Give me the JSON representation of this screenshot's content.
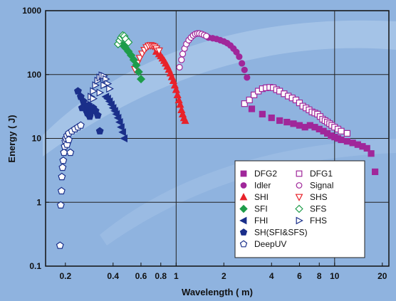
{
  "chart_data": {
    "type": "scatter",
    "xlabel": "Wavelength ( m)",
    "ylabel": "Energy ( J)",
    "xscale": "log",
    "yscale": "log",
    "xlim": [
      0.15,
      22
    ],
    "ylim": [
      0.1,
      1000
    ],
    "grid": true,
    "legend_position": "bottom-right",
    "x_ticks": [
      {
        "value": 0.2,
        "label": "0.2"
      },
      {
        "value": 0.4,
        "label": "0.4"
      },
      {
        "value": 0.6,
        "label": "0.6"
      },
      {
        "value": 0.8,
        "label": "0.8"
      },
      {
        "value": 1,
        "label": "1"
      },
      {
        "value": 2,
        "label": "2"
      },
      {
        "value": 4,
        "label": "4"
      },
      {
        "value": 6,
        "label": "6"
      },
      {
        "value": 8,
        "label": "8"
      },
      {
        "value": 10,
        "label": "10"
      },
      {
        "value": 20,
        "label": "20"
      }
    ],
    "y_ticks": [
      {
        "value": 0.1,
        "label": "0.1"
      },
      {
        "value": 1,
        "label": "1"
      },
      {
        "value": 10,
        "label": "10"
      },
      {
        "value": 100,
        "label": "100"
      },
      {
        "value": 1000,
        "label": "1000"
      }
    ],
    "series": [
      {
        "name": "DFG2",
        "marker": "square",
        "filled": true,
        "color": "#a0279a",
        "points": [
          [
            3.0,
            29
          ],
          [
            3.5,
            24
          ],
          [
            4.0,
            21
          ],
          [
            4.5,
            19
          ],
          [
            5.0,
            18
          ],
          [
            5.5,
            17
          ],
          [
            6.0,
            16
          ],
          [
            6.5,
            15
          ],
          [
            7.0,
            16
          ],
          [
            7.5,
            15
          ],
          [
            8.0,
            14
          ],
          [
            8.5,
            13
          ],
          [
            9.0,
            12
          ],
          [
            9.5,
            11
          ],
          [
            10,
            10.5
          ],
          [
            10.5,
            10
          ],
          [
            11,
            9.5
          ],
          [
            12,
            9
          ],
          [
            13,
            8.5
          ],
          [
            14,
            8
          ],
          [
            15,
            7.5
          ],
          [
            16,
            7
          ],
          [
            17,
            5.8
          ],
          [
            18,
            3.0
          ]
        ]
      },
      {
        "name": "DFG1",
        "marker": "square",
        "filled": false,
        "color": "#a0279a",
        "points": [
          [
            2.7,
            35
          ],
          [
            2.9,
            40
          ],
          [
            3.1,
            48
          ],
          [
            3.3,
            55
          ],
          [
            3.5,
            60
          ],
          [
            3.7,
            62
          ],
          [
            3.9,
            63
          ],
          [
            4.1,
            62
          ],
          [
            4.3,
            58
          ],
          [
            4.5,
            55
          ],
          [
            4.8,
            50
          ],
          [
            5.1,
            46
          ],
          [
            5.4,
            43
          ],
          [
            5.7,
            40
          ],
          [
            6.0,
            36
          ],
          [
            6.3,
            32
          ],
          [
            6.6,
            30
          ],
          [
            6.9,
            28
          ],
          [
            7.2,
            26
          ],
          [
            7.5,
            25
          ],
          [
            7.8,
            24
          ],
          [
            8.1,
            22
          ],
          [
            8.4,
            20
          ],
          [
            8.7,
            19
          ],
          [
            9.0,
            18
          ],
          [
            9.3,
            17
          ],
          [
            9.6,
            16
          ],
          [
            10,
            15
          ],
          [
            10.5,
            14
          ],
          [
            11,
            13
          ],
          [
            12,
            12
          ]
        ]
      },
      {
        "name": "Idler",
        "marker": "circle",
        "filled": true,
        "color": "#a0279a",
        "points": [
          [
            1.6,
            380
          ],
          [
            1.7,
            370
          ],
          [
            1.8,
            360
          ],
          [
            1.9,
            345
          ],
          [
            2.0,
            330
          ],
          [
            2.1,
            310
          ],
          [
            2.2,
            285
          ],
          [
            2.3,
            255
          ],
          [
            2.4,
            225
          ],
          [
            2.5,
            190
          ],
          [
            2.6,
            150
          ],
          [
            2.7,
            118
          ],
          [
            2.8,
            90
          ]
        ]
      },
      {
        "name": "Signal",
        "marker": "circle",
        "filled": false,
        "color": "#a0279a",
        "points": [
          [
            1.05,
            130
          ],
          [
            1.08,
            170
          ],
          [
            1.1,
            210
          ],
          [
            1.13,
            255
          ],
          [
            1.16,
            300
          ],
          [
            1.2,
            345
          ],
          [
            1.24,
            380
          ],
          [
            1.28,
            410
          ],
          [
            1.32,
            430
          ],
          [
            1.36,
            440
          ],
          [
            1.4,
            440
          ],
          [
            1.45,
            430
          ],
          [
            1.5,
            415
          ],
          [
            1.55,
            400
          ]
        ]
      },
      {
        "name": "SHI",
        "marker": "triangle-up",
        "filled": true,
        "color": "#e8222a",
        "points": [
          [
            0.75,
            230
          ],
          [
            0.78,
            210
          ],
          [
            0.8,
            195
          ],
          [
            0.82,
            180
          ],
          [
            0.84,
            165
          ],
          [
            0.86,
            150
          ],
          [
            0.88,
            135
          ],
          [
            0.9,
            120
          ],
          [
            0.92,
            105
          ],
          [
            0.94,
            92
          ],
          [
            0.96,
            80
          ],
          [
            0.98,
            68
          ],
          [
            1.0,
            58
          ],
          [
            1.02,
            48
          ],
          [
            1.04,
            40
          ],
          [
            1.06,
            34
          ],
          [
            1.08,
            28
          ],
          [
            1.1,
            24
          ],
          [
            1.12,
            21
          ],
          [
            1.14,
            19
          ]
        ]
      },
      {
        "name": "SHS",
        "marker": "triangle-down",
        "filled": false,
        "color": "#e8222a",
        "points": [
          [
            0.55,
            120
          ],
          [
            0.57,
            150
          ],
          [
            0.59,
            180
          ],
          [
            0.61,
            210
          ],
          [
            0.63,
            240
          ],
          [
            0.65,
            265
          ],
          [
            0.67,
            280
          ],
          [
            0.69,
            285
          ],
          [
            0.71,
            280
          ],
          [
            0.73,
            270
          ],
          [
            0.75,
            255
          ],
          [
            0.78,
            235
          ]
        ]
      },
      {
        "name": "SFI",
        "marker": "diamond",
        "filled": true,
        "color": "#1e9c4a",
        "points": [
          [
            0.46,
            290
          ],
          [
            0.48,
            260
          ],
          [
            0.5,
            230
          ],
          [
            0.52,
            200
          ],
          [
            0.54,
            170
          ],
          [
            0.56,
            140
          ],
          [
            0.58,
            110
          ],
          [
            0.6,
            85
          ]
        ]
      },
      {
        "name": "SFS",
        "marker": "diamond",
        "filled": false,
        "color": "#1e9c4a",
        "points": [
          [
            0.43,
            300
          ],
          [
            0.44,
            340
          ],
          [
            0.45,
            380
          ],
          [
            0.46,
            410
          ],
          [
            0.47,
            400
          ],
          [
            0.48,
            360
          ],
          [
            0.5,
            320
          ]
        ]
      },
      {
        "name": "FHI",
        "marker": "triangle-left",
        "filled": true,
        "color": "#1a2f8a",
        "points": [
          [
            0.36,
            45
          ],
          [
            0.37,
            42
          ],
          [
            0.38,
            38
          ],
          [
            0.39,
            34
          ],
          [
            0.4,
            30
          ],
          [
            0.41,
            27
          ],
          [
            0.42,
            24
          ],
          [
            0.43,
            21
          ],
          [
            0.44,
            18
          ],
          [
            0.45,
            15
          ],
          [
            0.46,
            12.5
          ],
          [
            0.47,
            10
          ]
        ]
      },
      {
        "name": "FHS",
        "marker": "triangle-right",
        "filled": false,
        "color": "#1a2f8a",
        "points": [
          [
            0.28,
            35
          ],
          [
            0.29,
            45
          ],
          [
            0.3,
            55
          ],
          [
            0.31,
            68
          ],
          [
            0.32,
            80
          ],
          [
            0.33,
            90
          ],
          [
            0.34,
            97
          ],
          [
            0.35,
            95
          ],
          [
            0.36,
            85
          ],
          [
            0.37,
            72
          ],
          [
            0.38,
            60
          ],
          [
            0.35,
            68
          ],
          [
            0.33,
            52
          ],
          [
            0.3,
            42
          ]
        ]
      },
      {
        "name": "SH(SFI&SFS)",
        "marker": "pentagon",
        "filled": true,
        "color": "#1a2f8a",
        "points": [
          [
            0.24,
            55
          ],
          [
            0.25,
            45
          ],
          [
            0.26,
            38
          ],
          [
            0.265,
            32
          ],
          [
            0.27,
            28
          ],
          [
            0.275,
            25
          ],
          [
            0.28,
            24
          ],
          [
            0.285,
            22
          ],
          [
            0.29,
            26
          ],
          [
            0.3,
            30
          ],
          [
            0.31,
            27
          ],
          [
            0.32,
            23
          ],
          [
            0.33,
            13
          ],
          [
            0.255,
            30
          ],
          [
            0.28,
            33
          ]
        ]
      },
      {
        "name": "DeepUV",
        "marker": "pentagon",
        "filled": false,
        "color": "#1a2f8a",
        "points": [
          [
            0.185,
            0.21
          ],
          [
            0.187,
            0.9
          ],
          [
            0.189,
            1.5
          ],
          [
            0.19,
            2.5
          ],
          [
            0.192,
            3.5
          ],
          [
            0.194,
            4.5
          ],
          [
            0.196,
            6
          ],
          [
            0.198,
            7.5
          ],
          [
            0.2,
            9
          ],
          [
            0.202,
            10
          ],
          [
            0.205,
            11
          ],
          [
            0.21,
            12
          ],
          [
            0.22,
            13
          ],
          [
            0.23,
            14
          ],
          [
            0.24,
            15
          ],
          [
            0.25,
            16
          ],
          [
            0.205,
            8
          ],
          [
            0.21,
            9.5
          ],
          [
            0.215,
            6
          ]
        ]
      }
    ]
  }
}
